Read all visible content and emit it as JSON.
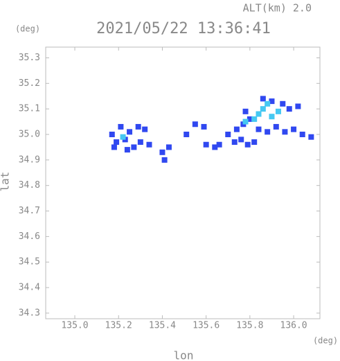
{
  "chart_data": {
    "type": "scatter",
    "title": "2021/05/22 13:36:41",
    "subtitle": "ALT(km) 2.0",
    "x_label": "lon",
    "y_label": "lat",
    "x_unit": "(deg)",
    "y_unit": "(deg)",
    "xlim": [
      134.867,
      136.12
    ],
    "ylim": [
      34.278,
      35.342
    ],
    "xticks": [
      {
        "value": 135.0,
        "label": "135.0"
      },
      135.2,
      135.4,
      135.6,
      135.8,
      {
        "value": 136.0,
        "label": "136.0"
      }
    ],
    "yticks": [
      35.3,
      35.2,
      35.1,
      {
        "value": 35.0,
        "label": "35.0"
      },
      34.9,
      34.8,
      34.7,
      34.6,
      34.5,
      34.4,
      34.3
    ],
    "series": [
      {
        "color": "#3048f0",
        "x": [
          135.17,
          135.19,
          135.21,
          135.23,
          135.25,
          135.27,
          135.24,
          135.3,
          135.32,
          135.29,
          135.18,
          135.34,
          135.4,
          135.41,
          135.43,
          135.51,
          135.55,
          135.6,
          135.64,
          135.66,
          135.59,
          135.7,
          135.73,
          135.76,
          135.79,
          135.82,
          135.77,
          135.8,
          135.86,
          135.9,
          135.95,
          135.98,
          136.02,
          135.92,
          135.96,
          136.0,
          136.04,
          136.08,
          135.88,
          135.84,
          135.74,
          135.78
        ],
        "y": [
          35.0,
          34.97,
          35.03,
          34.98,
          35.01,
          34.95,
          34.94,
          34.97,
          35.02,
          35.03,
          34.95,
          34.96,
          34.93,
          34.9,
          34.95,
          35.0,
          35.04,
          34.96,
          34.95,
          34.96,
          35.03,
          35.0,
          34.97,
          34.98,
          34.96,
          34.97,
          35.04,
          35.06,
          35.14,
          35.13,
          35.12,
          35.1,
          35.11,
          35.03,
          35.01,
          35.02,
          35.0,
          34.99,
          35.01,
          35.02,
          35.02,
          35.09
        ]
      },
      {
        "color": "#45c8f2",
        "x": [
          135.84,
          135.86,
          135.88,
          135.82,
          135.93,
          135.9,
          135.78,
          135.22
        ],
        "y": [
          35.08,
          35.1,
          35.12,
          35.06,
          35.09,
          35.07,
          35.05,
          34.99
        ]
      }
    ]
  }
}
